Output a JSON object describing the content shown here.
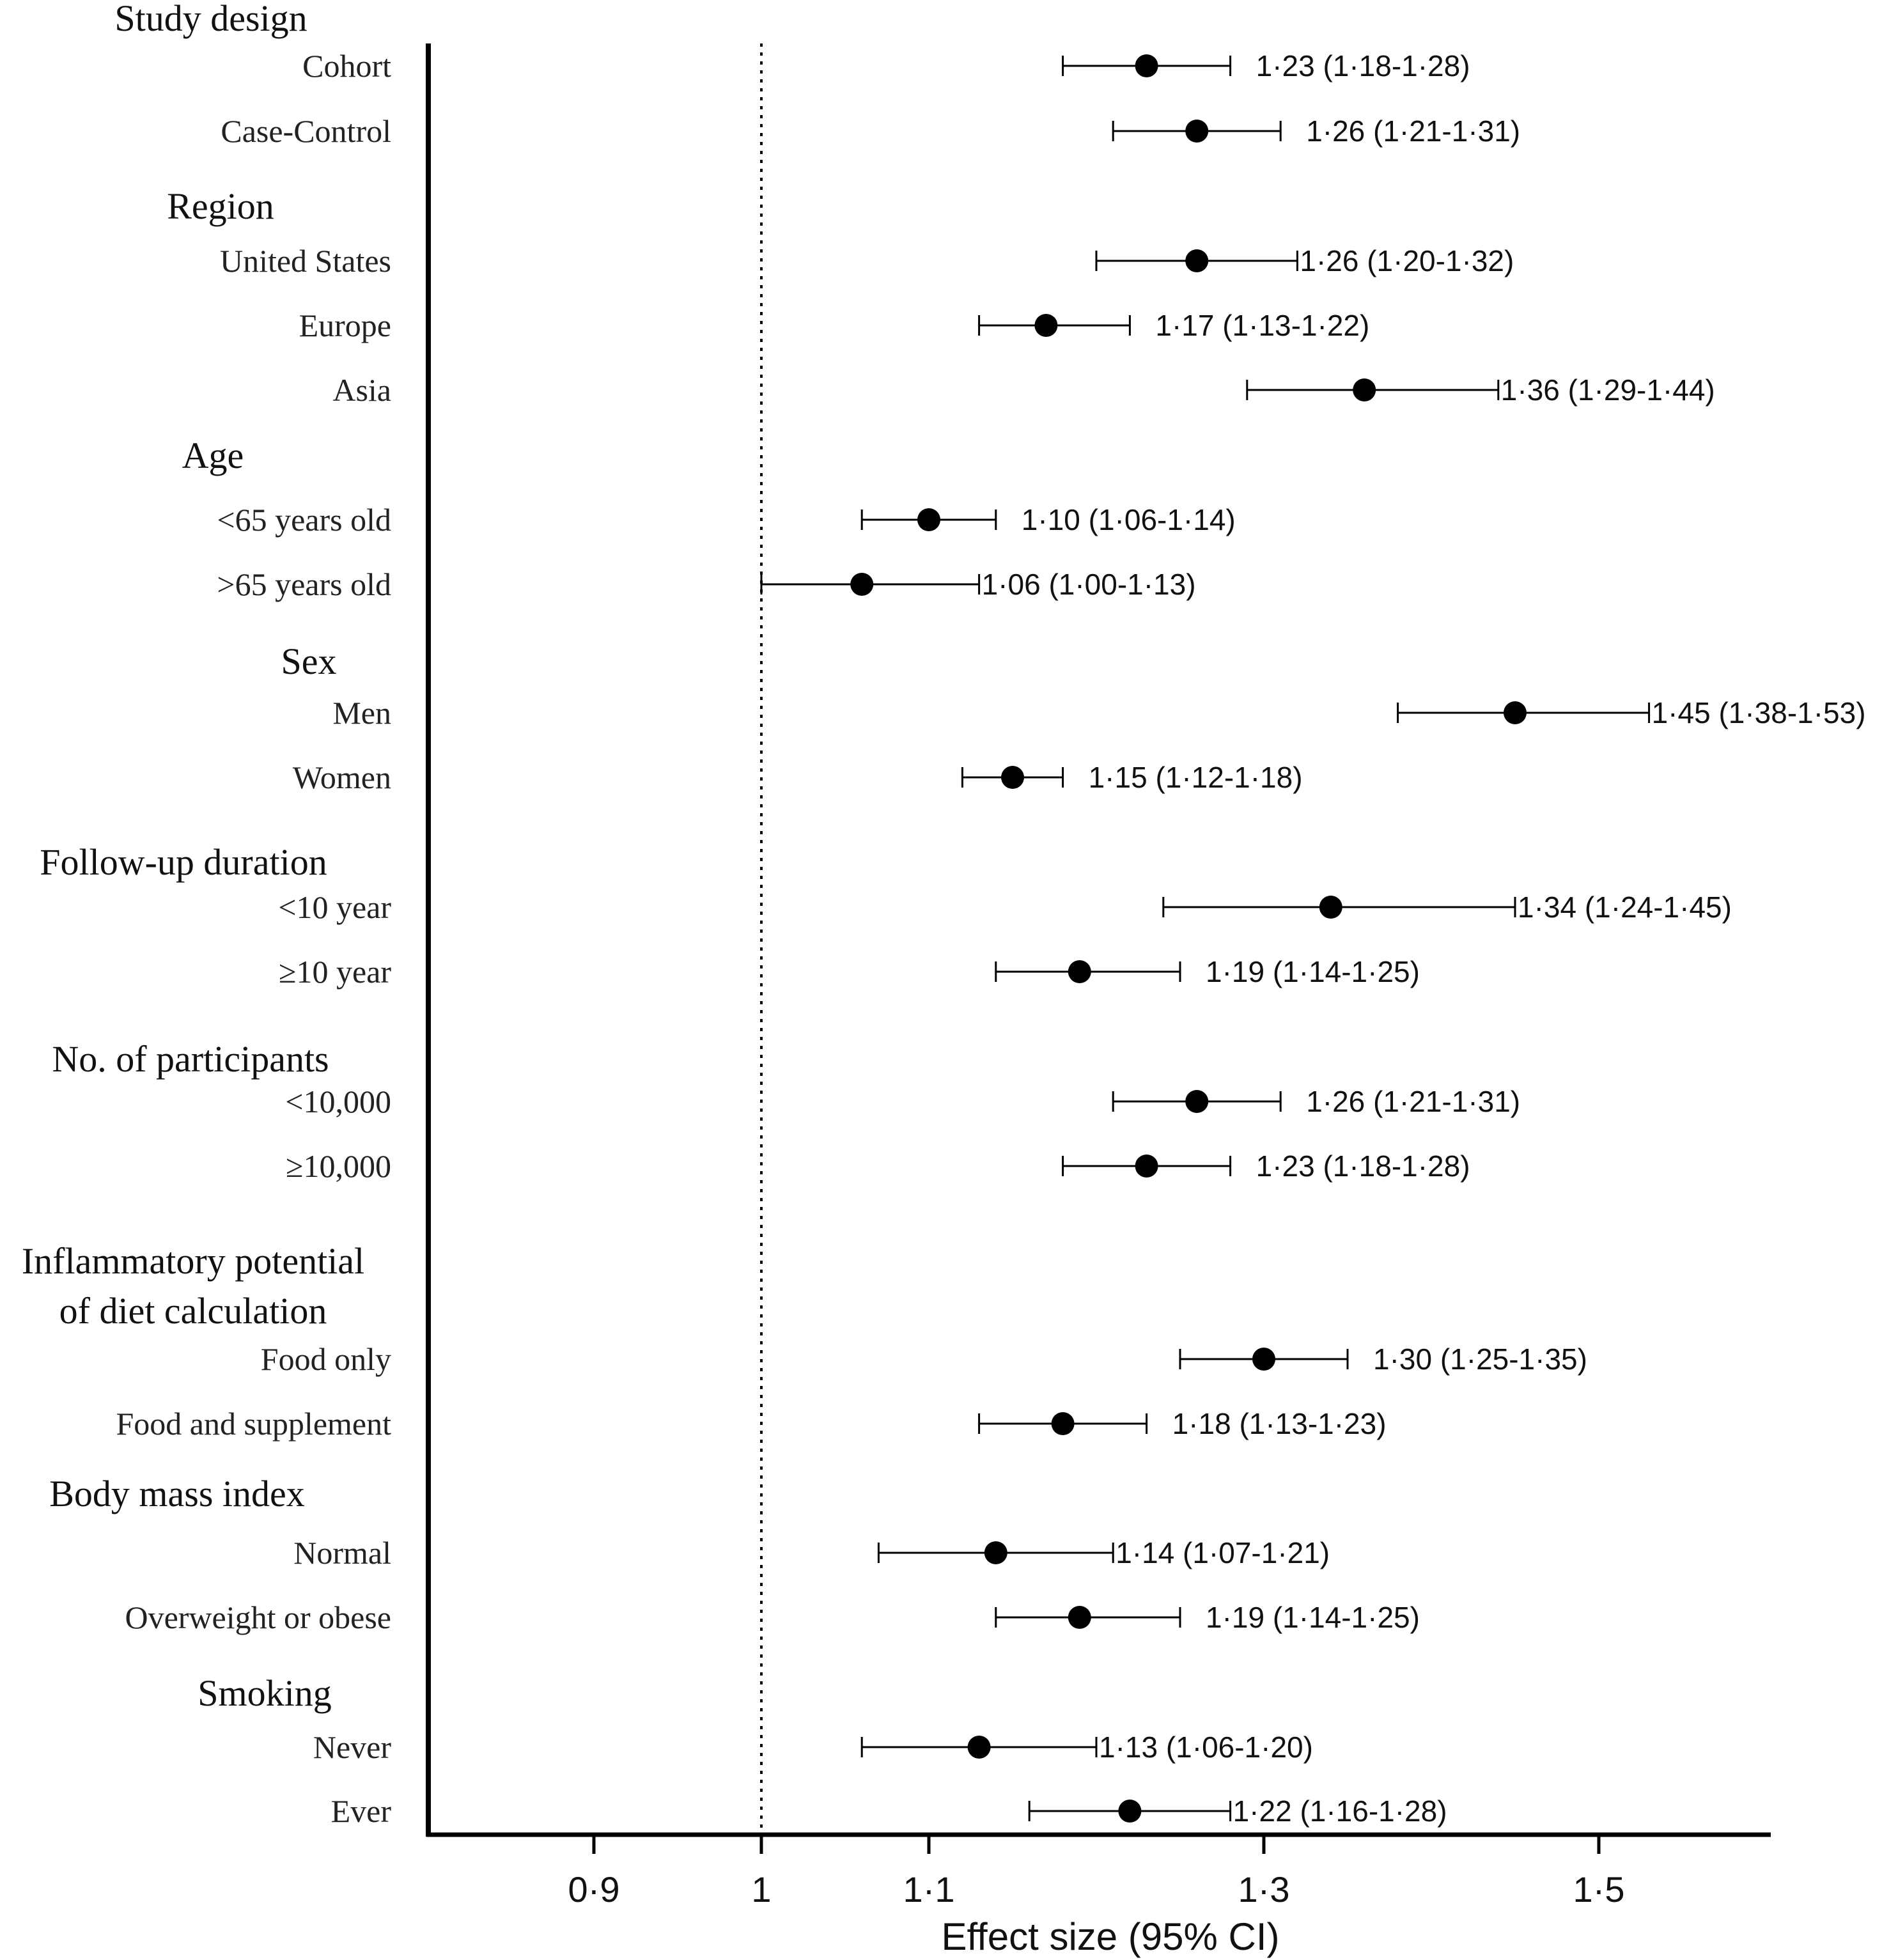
{
  "chart_data": {
    "type": "forest",
    "xlabel": "Effect size (95% CI)",
    "reference_line": 1,
    "xlim": [
      0.8,
      1.6
    ],
    "ticks": [
      {
        "value": 0.9,
        "label": "0·9"
      },
      {
        "value": 1.0,
        "label": "1"
      },
      {
        "value": 1.1,
        "label": "1·1"
      },
      {
        "value": 1.3,
        "label": "1·3"
      },
      {
        "value": 1.5,
        "label": "1·5"
      }
    ],
    "groups": [
      {
        "name": "Study design",
        "rows": [
          {
            "label": "Cohort",
            "est": 1.23,
            "lo": 1.18,
            "hi": 1.28,
            "text": "1·23 (1·18-1·28)"
          },
          {
            "label": "Case-Control",
            "est": 1.26,
            "lo": 1.21,
            "hi": 1.31,
            "text": "1·26 (1·21-1·31)"
          }
        ]
      },
      {
        "name": "Region",
        "rows": [
          {
            "label": "United States",
            "est": 1.26,
            "lo": 1.2,
            "hi": 1.32,
            "text": "1·26 (1·20-1·32)"
          },
          {
            "label": "Europe",
            "est": 1.17,
            "lo": 1.13,
            "hi": 1.22,
            "text": "1·17 (1·13-1·22)"
          },
          {
            "label": "Asia",
            "est": 1.36,
            "lo": 1.29,
            "hi": 1.44,
            "text": "1·36 (1·29-1·44)"
          }
        ]
      },
      {
        "name": "Age",
        "rows": [
          {
            "label": "<65 years old",
            "est": 1.1,
            "lo": 1.06,
            "hi": 1.14,
            "text": "1·10 (1·06-1·14)"
          },
          {
            "label": ">65 years old",
            "est": 1.06,
            "lo": 1.0,
            "hi": 1.13,
            "text": "1·06 (1·00-1·13)"
          }
        ]
      },
      {
        "name": "Sex",
        "rows": [
          {
            "label": "Men",
            "est": 1.45,
            "lo": 1.38,
            "hi": 1.53,
            "text": "1·45 (1·38-1·53)"
          },
          {
            "label": "Women",
            "est": 1.15,
            "lo": 1.12,
            "hi": 1.18,
            "text": "1·15 (1·12-1·18)"
          }
        ]
      },
      {
        "name": "Follow-up duration",
        "rows": [
          {
            "label": "<10 year",
            "est": 1.34,
            "lo": 1.24,
            "hi": 1.45,
            "text": "1·34 (1·24-1·45)"
          },
          {
            "label": "≥10 year",
            "est": 1.19,
            "lo": 1.14,
            "hi": 1.25,
            "text": "1·19 (1·14-1·25)"
          }
        ]
      },
      {
        "name": "No. of participants",
        "rows": [
          {
            "label": "<10,000",
            "est": 1.26,
            "lo": 1.21,
            "hi": 1.31,
            "text": "1·26 (1·21-1·31)"
          },
          {
            "label": "≥10,000",
            "est": 1.23,
            "lo": 1.18,
            "hi": 1.28,
            "text": "1·23 (1·18-1·28)"
          }
        ]
      },
      {
        "name": "Inflammatory potential of diet calculation",
        "name_lines": [
          "Inflammatory potential",
          "of diet calculation"
        ],
        "rows": [
          {
            "label": "Food only",
            "est": 1.3,
            "lo": 1.25,
            "hi": 1.35,
            "text": "1·30 (1·25-1·35)"
          },
          {
            "label": "Food and supplement",
            "est": 1.18,
            "lo": 1.13,
            "hi": 1.23,
            "text": "1·18 (1·13-1·23)"
          }
        ]
      },
      {
        "name": "Body mass index",
        "rows": [
          {
            "label": "Normal",
            "est": 1.14,
            "lo": 1.07,
            "hi": 1.21,
            "text": "1·14 (1·07-1·21)"
          },
          {
            "label": "Overweight or obese",
            "est": 1.19,
            "lo": 1.14,
            "hi": 1.25,
            "text": "1·19 (1·14-1·25)"
          }
        ]
      },
      {
        "name": "Smoking",
        "rows": [
          {
            "label": "Never",
            "est": 1.13,
            "lo": 1.06,
            "hi": 1.2,
            "text": "1·13 (1·06-1·20)"
          },
          {
            "label": "Ever",
            "est": 1.22,
            "lo": 1.16,
            "hi": 1.28,
            "text": "1·22 (1·16-1·28)"
          }
        ]
      }
    ]
  }
}
